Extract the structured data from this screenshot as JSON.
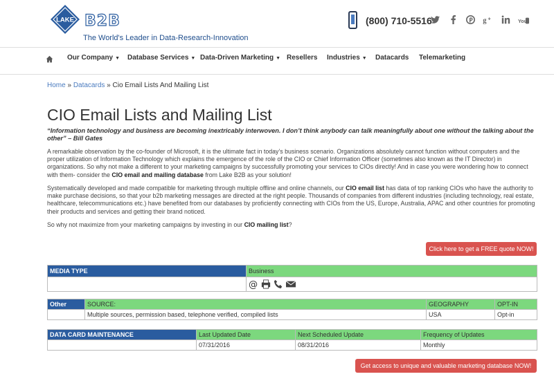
{
  "header": {
    "logo_text": "LAKE",
    "logo_b2b": "B2B",
    "tagline": "The World's Leader in Data-Research-Innovation",
    "phone": "(800) 710-5516",
    "social_icons": [
      "twitter-icon",
      "facebook-icon",
      "pinterest-icon",
      "google-plus-icon",
      "linkedin-icon",
      "youtube-icon"
    ]
  },
  "nav": {
    "items": [
      {
        "label": "Our Company",
        "has_dropdown": true
      },
      {
        "label": "Database Services",
        "has_dropdown": true
      },
      {
        "label": "Data-Driven Marketing",
        "has_dropdown": true
      },
      {
        "label": "Resellers",
        "has_dropdown": false
      },
      {
        "label": "Industries",
        "has_dropdown": true
      },
      {
        "label": "Datacards",
        "has_dropdown": false
      },
      {
        "label": "Telemarketing",
        "has_dropdown": false
      }
    ]
  },
  "breadcrumb": {
    "home": "Home",
    "sep": " » ",
    "datacards": "Datacards",
    "current": "Cio Email Lists And Mailing List"
  },
  "page": {
    "title": "CIO Email Lists and Mailing List",
    "quote": "“Information technology and business are becoming inextricably interwoven. I don’t think anybody can talk meaningfully about one without the talking about the other” – Bill Gates",
    "p1_a": "A remarkable observation by the co-founder of Microsoft, it is the ultimate fact in today’s business scenario. Organizations absolutely cannot function without computers and the proper utilization of Information Technology which explains the emergence of the role of the CIO or Chief Information Officer (sometimes also known as the IT Director) in organizations. So why not make a different to your marketing campaigns by successfully promoting your services to CIOs directly! And in case you were wondering how to connect with them- consider the ",
    "p1_bold": "CIO email and mailing database",
    "p1_b": " from Lake B2B as your solution!",
    "p2_a": "Systematically developed and made compatible for marketing through multiple offline and online channels, our ",
    "p2_bold": "CIO email list",
    "p2_b": " has data of top ranking CIOs who have the authority to make purchase decisions, so that your b2b marketing messages are directed at the right people. Thousands of companies from different industries (including technology, real estate, healthcare, telecommunications etc.) have benefited from our databases by proficiently connecting with CIOs from the US, Europe, Australia, APAC and other countries for promoting their products and services and getting their brand noticed.",
    "p3_a": "So why not maximize from your marketing campaigns by investing in our ",
    "p3_bold": "CIO mailing list",
    "p3_b": "?",
    "quote_button": "Click here to get a FREE quote NOW!",
    "access_button": "Get access to unique and valuable marketing database NOW!"
  },
  "media_table": {
    "header": "MEDIA TYPE",
    "value": "Business",
    "icons": [
      "at-sign-icon",
      "fax-icon",
      "phone-icon",
      "envelope-icon"
    ]
  },
  "other_table": {
    "label": "Other",
    "source_header": "SOURCE:",
    "geo_header": "GEOGRAPHY",
    "optin_header": "OPT-IN",
    "source_value": "Multiple sources, permission based, telephone verified, compiled lists",
    "geo_value": "USA",
    "optin_value": "Opt-in"
  },
  "maint_table": {
    "label": "DATA CARD MAINTENANCE",
    "last_updated_header": "Last Updated Date",
    "next_update_header": "Next Scheduled Update",
    "frequency_header": "Frequency of Updates",
    "last_updated": "07/31/2016",
    "next_update": "08/31/2016",
    "frequency": "Monthly"
  },
  "colors": {
    "brand_blue": "#2a5c9f",
    "table_green": "#7cd87e",
    "button_red": "#d9534f",
    "link_blue": "#4a7bbf"
  }
}
